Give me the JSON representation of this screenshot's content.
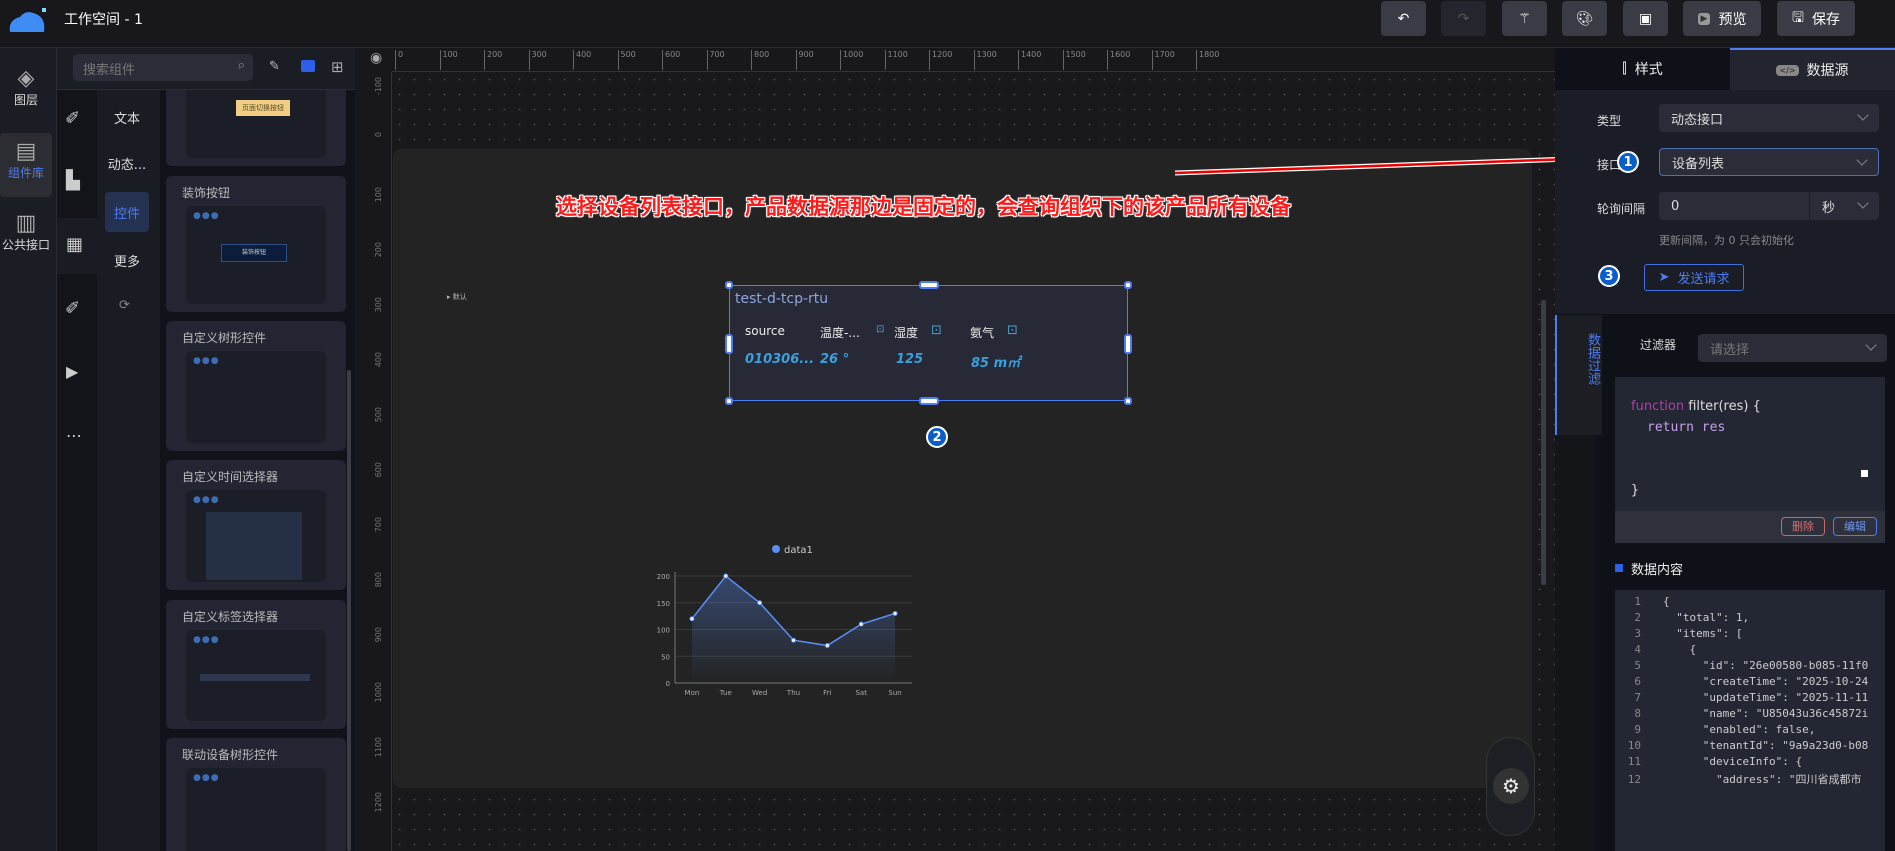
{
  "app": {
    "title": "工作空间 - 1",
    "logo": "cloud-logo"
  },
  "toolbar": {
    "undo": "undo-icon",
    "redo": "redo-icon",
    "magic": "magic-wand-icon",
    "theme": "palette-icon",
    "thumbnail": "image-icon",
    "preview_label": "预览",
    "save_label": "保存"
  },
  "rail": {
    "items": [
      {
        "label": "图层",
        "icon": "layers-icon"
      },
      {
        "label": "组件库",
        "icon": "chart-icon",
        "active": true
      },
      {
        "label": "公共接口",
        "icon": "layout-icon"
      }
    ]
  },
  "search": {
    "placeholder": "搜索组件"
  },
  "categories": [
    "文本",
    "动态...",
    "控件",
    "更多"
  ],
  "cards": [
    {
      "title": "",
      "preview": "页面切换按钮"
    },
    {
      "title": "装饰按钮",
      "preview": "装饰按钮"
    },
    {
      "title": "自定义树形控件"
    },
    {
      "title": "自定义时间选择器"
    },
    {
      "title": "自定义标签选择器"
    },
    {
      "title": "联动设备树形控件"
    }
  ],
  "ruler": {
    "h": [
      "0",
      "100",
      "200",
      "300",
      "400",
      "500",
      "600",
      "700",
      "800",
      "900",
      "1000",
      "1100",
      "1200",
      "1300",
      "1400",
      "1500",
      "1600",
      "1700",
      "1800"
    ],
    "v": [
      "-100",
      "0",
      "100",
      "200",
      "300",
      "400",
      "500",
      "600",
      "700",
      "800",
      "900",
      "1000",
      "1100",
      "1200"
    ]
  },
  "annotation": {
    "text": "选择设备列表接口，产品数据源那边是固定的，会查询组织下的该产品所有设备",
    "badge1": "1",
    "badge2": "2",
    "badge3": "3",
    "color": "#ff1a1a"
  },
  "canvas": {
    "default_label": "默认"
  },
  "widget": {
    "title": "test-d-tcp-rtu",
    "columns": [
      {
        "name": "source",
        "value": "010306..."
      },
      {
        "name": "温度-...",
        "value": "26 °"
      },
      {
        "name": "湿度",
        "value": "125"
      },
      {
        "name": "氨气",
        "value": "85 m㎡"
      }
    ]
  },
  "chart_data": {
    "type": "line",
    "categories": [
      "Mon",
      "Tue",
      "Wed",
      "Thu",
      "Fri",
      "Sat",
      "Sun"
    ],
    "series": [
      {
        "name": "data1",
        "values": [
          120,
          200,
          150,
          80,
          70,
          110,
          130
        ]
      }
    ],
    "ylim": [
      0,
      200
    ],
    "yticks": [
      "0",
      "50",
      "100",
      "150",
      "200"
    ],
    "legend": "top",
    "area": true,
    "color": "#5b8ff9"
  },
  "panel": {
    "tabs": [
      "样式",
      "数据源"
    ],
    "active_tab": "数据源",
    "type_label": "类型",
    "type_value": "动态接口",
    "api_label": "接口",
    "api_value": "设备列表",
    "poll_label": "轮询间隔",
    "poll_value": "0",
    "poll_unit": "秒",
    "poll_hint": "更新间隔，为 0 只会初始化",
    "send_label": "发送请求",
    "side_tab": "数据过滤",
    "filter_label": "过滤器",
    "filter_placeholder": "请选择",
    "code": [
      "function filter(res) {",
      "return res",
      "}"
    ],
    "delete_label": "删除",
    "edit_label": "编辑",
    "content_title": "数据内容",
    "json_lines": [
      [
        "1",
        "{"
      ],
      [
        "2",
        "  \"total\": 1,"
      ],
      [
        "3",
        "  \"items\": ["
      ],
      [
        "4",
        "    {"
      ],
      [
        "5",
        "      \"id\": \"26e00580-b085-11f0"
      ],
      [
        "6",
        "      \"createTime\": \"2025-10-24"
      ],
      [
        "7",
        "      \"updateTime\": \"2025-11-11"
      ],
      [
        "8",
        "      \"name\": \"U85043u36c45872i"
      ],
      [
        "9",
        "      \"enabled\": false,"
      ],
      [
        "10",
        "      \"tenantId\": \"9a9a23d0-b08"
      ],
      [
        "11",
        "      \"deviceInfo\": {"
      ],
      [
        "12",
        "        \"address\": \"四川省成都市"
      ]
    ]
  }
}
